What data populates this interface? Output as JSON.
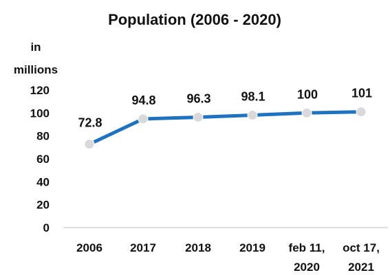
{
  "chart_data": {
    "type": "line",
    "title": "Population (2006 - 2020)",
    "ylabel": [
      "in",
      "millions"
    ],
    "xlabel": "",
    "categories": [
      [
        "2006"
      ],
      [
        "2017"
      ],
      [
        "2018"
      ],
      [
        "2019"
      ],
      [
        "feb 11,",
        "2020"
      ],
      [
        "oct 17,",
        "2021"
      ]
    ],
    "series": [
      {
        "values": [
          72.8,
          94.8,
          96.3,
          98.1,
          100,
          101
        ],
        "data_labels": [
          "72.8",
          "94.8",
          "96.3",
          "98.1",
          "100",
          "101"
        ]
      }
    ],
    "ylim": [
      0,
      120
    ],
    "yticks": [
      "0",
      "20",
      "40",
      "60",
      "80",
      "100",
      "120"
    ],
    "ytick_values": [
      0,
      20,
      40,
      60,
      80,
      100,
      120
    ],
    "grid": false,
    "legend": "none",
    "colors": {
      "line": "#1f72bf",
      "marker": "#d9d9d9",
      "axis": "#bfbfbf"
    }
  }
}
